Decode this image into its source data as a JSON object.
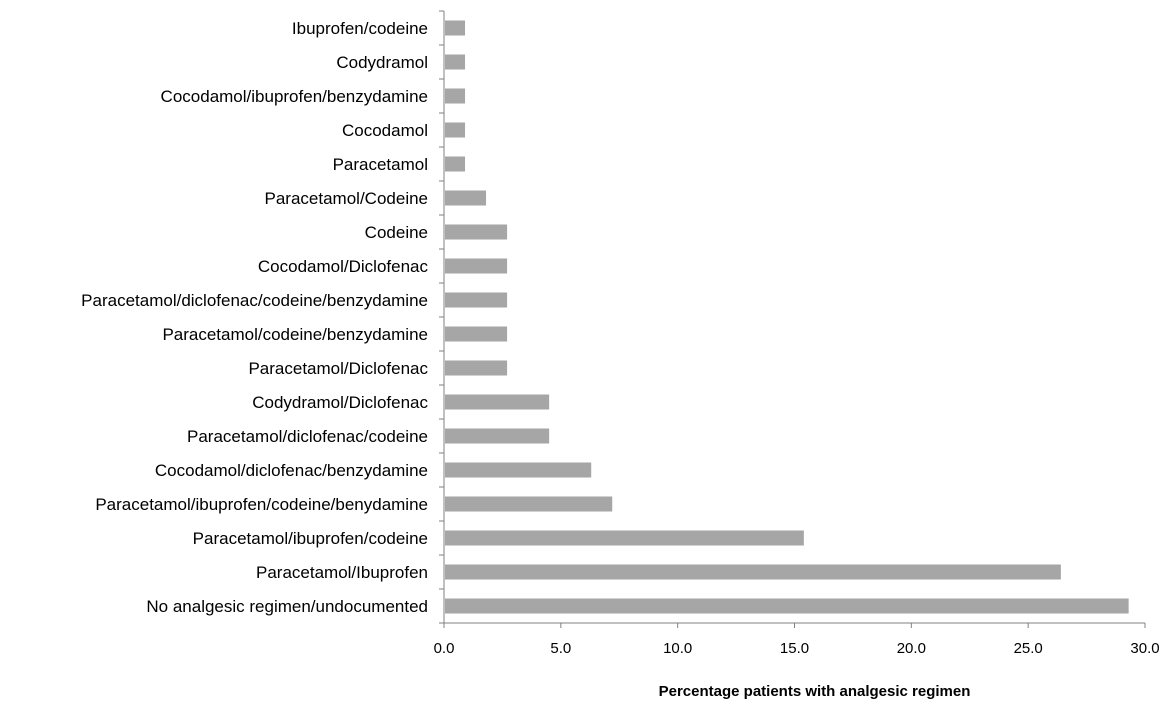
{
  "chart_data": {
    "type": "bar",
    "orientation": "horizontal",
    "categories": [
      "Ibuprofen/codeine",
      "Codydramol",
      "Cocodamol/ibuprofen/benzydamine",
      "Cocodamol",
      "Paracetamol",
      "Paracetamol/Codeine",
      "Codeine",
      "Cocodamol/Diclofenac",
      "Paracetamol/diclofenac/codeine/benzydamine",
      "Paracetamol/codeine/benzydamine",
      "Paracetamol/Diclofenac",
      "Codydramol/Diclofenac",
      "Paracetamol/diclofenac/codeine",
      "Cocodamol/diclofenac/benzydamine",
      "Paracetamol/ibuprofen/codeine/benydamine",
      "Paracetamol/ibuprofen/codeine",
      "Paracetamol/Ibuprofen",
      "No analgesic regimen/undocumented"
    ],
    "values": [
      0.9,
      0.9,
      0.9,
      0.9,
      0.9,
      1.8,
      2.7,
      2.7,
      2.7,
      2.7,
      2.7,
      4.5,
      4.5,
      6.3,
      7.2,
      15.4,
      26.4,
      29.3
    ],
    "xlabel": "Percentage patients with analgesic regimen",
    "ylabel": "",
    "xlim": [
      0,
      30
    ],
    "xticks": [
      "0.0",
      "5.0",
      "10.0",
      "15.0",
      "20.0",
      "25.0",
      "30.0"
    ],
    "grid": false,
    "legend": "none",
    "bar_color": "#a6a6a6"
  }
}
